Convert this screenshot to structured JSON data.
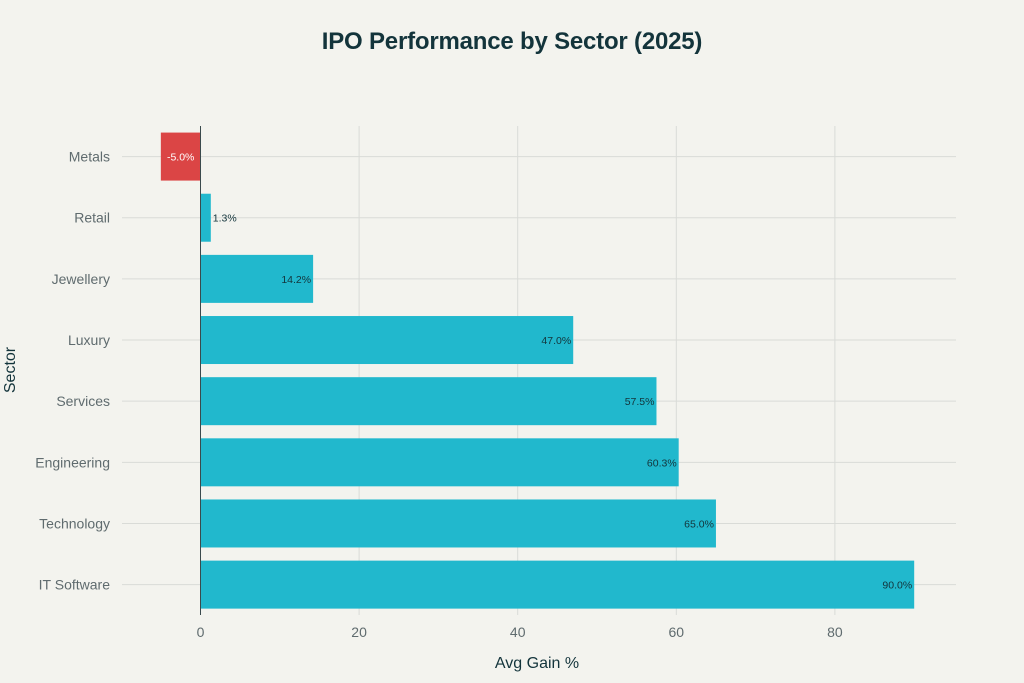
{
  "chart_data": {
    "type": "bar",
    "orientation": "horizontal",
    "title": "IPO Performance by Sector (2025)",
    "xlabel": "Avg Gain %",
    "ylabel": "Sector",
    "categories": [
      "Metals",
      "Retail",
      "Jewellery",
      "Luxury",
      "Services",
      "Engineering",
      "Technology",
      "IT Software"
    ],
    "values": [
      -5.0,
      1.3,
      14.2,
      47.0,
      57.5,
      60.3,
      65.0,
      90.0
    ],
    "data_labels": [
      "-5.0%",
      "1.3%",
      "14.2%",
      "47.0%",
      "57.5%",
      "60.3%",
      "65.0%",
      "90.0%"
    ],
    "xlim": [
      -10,
      95
    ],
    "xticks": [
      0,
      20,
      40,
      60,
      80
    ],
    "grid": true,
    "colors": {
      "positive": "#21b8cd",
      "negative": "#db4545",
      "background": "#f3f3ee",
      "grid": "#d9dbd7"
    }
  }
}
